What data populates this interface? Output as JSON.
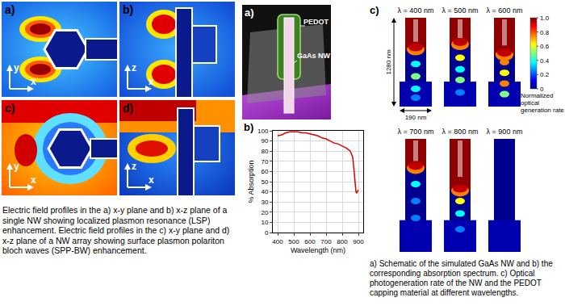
{
  "field_profiles": {
    "panels": [
      {
        "label": "a)",
        "axes": [
          "y",
          "x"
        ]
      },
      {
        "label": "b)",
        "axes": [
          "z",
          "x"
        ]
      },
      {
        "label": "c)",
        "axes": [
          "y",
          "x"
        ]
      },
      {
        "label": "d)",
        "axes": [
          "z",
          "x"
        ]
      }
    ],
    "caption": "Electric field profiles in the a) x-y plane and b) x-z plane of a single NW showing localized plasmon resonance (LSP) enhancement.  Electric field profiles in the c) x-y plane and d) x-z plane of a NW array showing surface plasmon polariton bloch waves (SPP-BW) enhancement."
  },
  "schematic": {
    "label": "a)",
    "texts": [
      "PEDOT",
      "GaAs NW"
    ]
  },
  "chart_data": {
    "type": "line",
    "label": "b)",
    "xlabel": "Wavelength (nm)",
    "ylabel": "% Absorption",
    "x": [
      400,
      425,
      450,
      475,
      500,
      525,
      550,
      575,
      600,
      625,
      650,
      675,
      700,
      725,
      750,
      775,
      800,
      825,
      850,
      865,
      875,
      880,
      885,
      890,
      900
    ],
    "values": [
      95,
      96,
      98,
      99,
      99,
      99,
      98,
      98,
      97,
      96,
      95,
      93,
      92,
      90,
      88,
      87,
      85,
      83,
      80,
      74,
      58,
      45,
      40,
      39,
      42
    ],
    "color": "#e00000",
    "xlim": [
      370,
      930
    ],
    "xticks": [
      400,
      500,
      600,
      700,
      800,
      900
    ],
    "ylim": [
      0,
      100
    ],
    "yticks": [
      0,
      10,
      20,
      30,
      40,
      50,
      60,
      70,
      80,
      90,
      100
    ],
    "grid": true
  },
  "generation_maps": {
    "label": "c)",
    "wavelengths": [
      "λ = 400 nm",
      "λ = 500 nm",
      "λ = 600 nm",
      "λ = 700 nm",
      "λ = 800 nm",
      "λ = 900 nm"
    ],
    "height_label": "1280 nm",
    "width_label": "190 nm",
    "colorbar": {
      "title": "Normalized optical generation rate",
      "range": [
        0,
        1
      ],
      "ticks": [
        0,
        0.2,
        0.4,
        0.6,
        0.8,
        {
          "value": 1,
          "label": "1.0"
        }
      ]
    }
  },
  "caption": "a) Schematic of the simulated GaAs NW and b) the corresponding absorption spectrum. c) Optical photogeneration rate of the NW and the PEDOT capping material at different wavelengths."
}
